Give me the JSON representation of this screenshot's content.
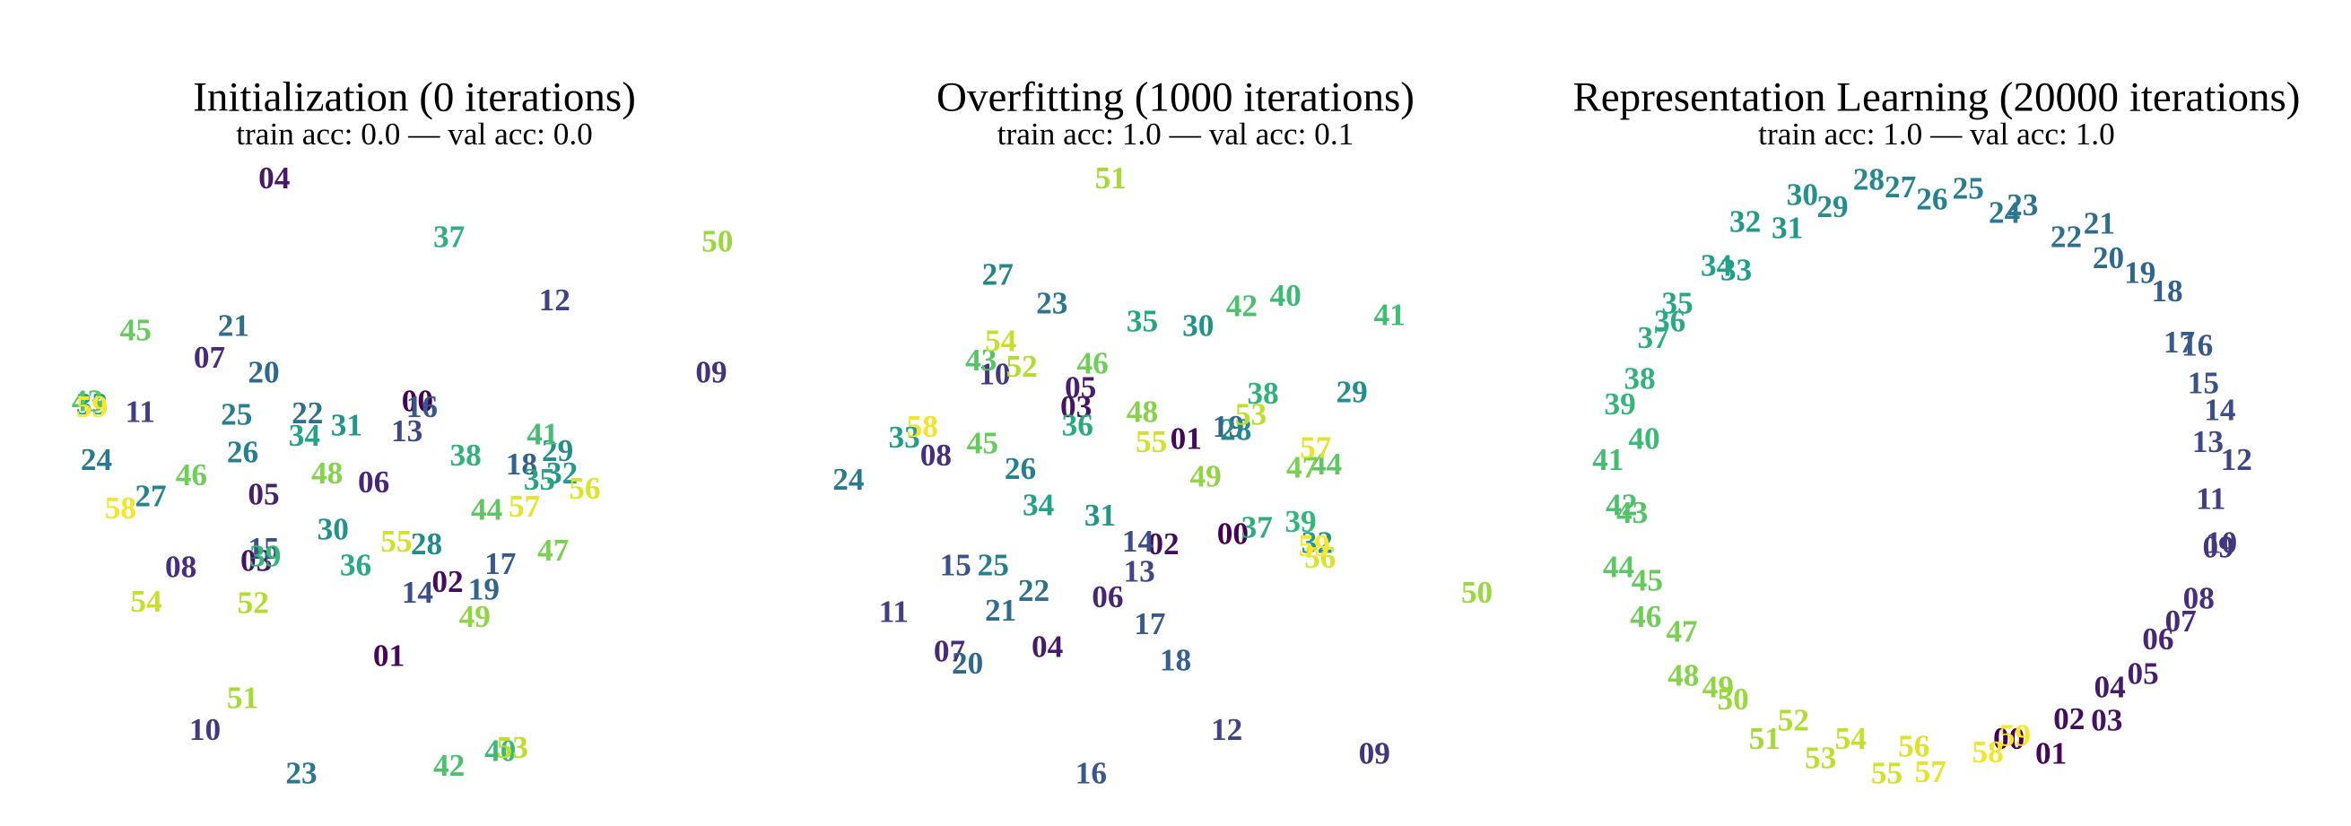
{
  "chart_data": [
    {
      "type": "scatter",
      "title": "Initialization (0 iterations)",
      "subtitle": "train acc: 0.0 — val acc: 0.0",
      "colormap": "viridis",
      "xlim": [
        45,
        505
      ],
      "ylim": [
        540,
        100
      ],
      "labels": [
        "00",
        "01",
        "02",
        "03",
        "04",
        "05",
        "06",
        "07",
        "08",
        "09",
        "10",
        "11",
        "12",
        "13",
        "14",
        "15",
        "16",
        "17",
        "18",
        "19",
        "20",
        "21",
        "22",
        "23",
        "24",
        "25",
        "26",
        "27",
        "28",
        "29",
        "30",
        "31",
        "32",
        "33",
        "34",
        "35",
        "36",
        "37",
        "38",
        "39",
        "40",
        "41",
        "42",
        "43",
        "44",
        "45",
        "46",
        "47",
        "48",
        "49",
        "50",
        "51",
        "52",
        "53",
        "54",
        "55",
        "56",
        "57",
        "58",
        "59"
      ],
      "x": [
        277,
        258,
        297,
        170,
        182,
        175,
        248,
        139,
        120,
        472,
        136,
        93,
        368,
        270,
        277,
        175,
        280,
        332,
        346,
        321,
        175,
        155,
        204,
        200,
        64,
        157,
        161,
        100,
        283,
        370,
        221,
        230,
        373,
        61,
        202,
        358,
        236,
        298,
        309,
        176,
        332,
        360,
        298,
        58,
        323,
        90,
        127,
        367,
        217,
        315,
        476,
        161,
        168,
        340,
        97,
        263,
        388,
        348,
        80,
        61
      ],
      "y": [
        268,
        437,
        388,
        374,
        120,
        330,
        322,
        239,
        378,
        249,
        486,
        275,
        201,
        288,
        395,
        366,
        272,
        376,
        310,
        393,
        249,
        218,
        276,
        515,
        307,
        277,
        302,
        331,
        363,
        301,
        353,
        284,
        316,
        270,
        291,
        320,
        377,
        159,
        304,
        371,
        500,
        290,
        510,
        268,
        340,
        221,
        317,
        367,
        316,
        411,
        162,
        465,
        402,
        498,
        401,
        361,
        326,
        338,
        339,
        272
      ]
    },
    {
      "type": "scatter",
      "title": "Overfitting (1000 iterations)",
      "subtitle": "train acc: 1.0 — val acc: 0.1",
      "colormap": "viridis",
      "xlim": [
        550,
        1010
      ],
      "ylim": [
        540,
        100
      ],
      "labels": [
        "00",
        "01",
        "02",
        "03",
        "04",
        "05",
        "06",
        "07",
        "08",
        "09",
        "10",
        "11",
        "12",
        "13",
        "14",
        "15",
        "16",
        "17",
        "18",
        "19",
        "20",
        "21",
        "22",
        "23",
        "24",
        "25",
        "26",
        "27",
        "28",
        "29",
        "30",
        "31",
        "32",
        "33",
        "34",
        "35",
        "36",
        "37",
        "38",
        "39",
        "40",
        "41",
        "42",
        "43",
        "44",
        "45",
        "46",
        "47",
        "48",
        "49",
        "50",
        "51",
        "52",
        "53",
        "54",
        "55",
        "56",
        "57",
        "58",
        "59"
      ],
      "x": [
        818,
        787,
        772,
        714,
        695,
        717,
        735,
        630,
        621,
        912,
        660,
        593,
        814,
        756,
        755,
        634,
        724,
        763,
        780,
        815,
        642,
        664,
        686,
        698,
        563,
        659,
        677,
        662,
        820,
        897,
        795,
        730,
        874,
        600,
        689,
        758,
        715,
        834,
        838,
        863,
        853,
        922,
        824,
        651,
        880,
        652,
        725,
        864,
        758,
        800,
        980,
        737,
        678,
        830,
        664,
        764,
        876,
        873,
        612,
        872
      ],
      "y": [
        356,
        293,
        363,
        272,
        431,
        259,
        398,
        434,
        304,
        502,
        250,
        408,
        486,
        381,
        361,
        377,
        515,
        416,
        440,
        285,
        442,
        407,
        394,
        203,
        320,
        377,
        313,
        184,
        287,
        262,
        218,
        344,
        362,
        292,
        337,
        215,
        284,
        352,
        263,
        348,
        198,
        211,
        205,
        241,
        310,
        296,
        243,
        312,
        275,
        318,
        395,
        120,
        245,
        277,
        228,
        295,
        372,
        299,
        285,
        364
      ]
    },
    {
      "type": "scatter",
      "title": "Representation Learning (20000 iterations)",
      "subtitle": "train acc: 1.0 — val acc: 1.0",
      "colormap": "viridis",
      "xlim": [
        1055,
        1515
      ],
      "ylim": [
        540,
        100
      ],
      "labels": [
        "00",
        "01",
        "02",
        "03",
        "04",
        "05",
        "06",
        "07",
        "08",
        "09",
        "10",
        "11",
        "12",
        "13",
        "14",
        "15",
        "16",
        "17",
        "18",
        "19",
        "20",
        "21",
        "22",
        "23",
        "24",
        "25",
        "26",
        "27",
        "28",
        "29",
        "30",
        "31",
        "32",
        "33",
        "34",
        "35",
        "36",
        "37",
        "38",
        "39",
        "40",
        "41",
        "42",
        "43",
        "44",
        "45",
        "46",
        "47",
        "48",
        "49",
        "50",
        "51",
        "52",
        "53",
        "54",
        "55",
        "56",
        "57",
        "58",
        "59"
      ],
      "x": [
        1333,
        1361,
        1373,
        1398,
        1400,
        1422,
        1432,
        1447,
        1459,
        1472,
        1474,
        1467,
        1484,
        1465,
        1473,
        1462,
        1458,
        1446,
        1438,
        1420,
        1399,
        1393,
        1371,
        1342,
        1330,
        1306,
        1282,
        1261,
        1240,
        1216,
        1196,
        1186,
        1158,
        1152,
        1139,
        1113,
        1108,
        1097,
        1088,
        1075,
        1091,
        1067,
        1076,
        1083,
        1074,
        1093,
        1092,
        1116,
        1117,
        1140,
        1150,
        1171,
        1190,
        1208,
        1228,
        1252,
        1270,
        1281,
        1319,
        1337
      ],
      "y": [
        492,
        502,
        479,
        480,
        458,
        449,
        426,
        414,
        399,
        365,
        362,
        333,
        307,
        295,
        274,
        256,
        231,
        229,
        195,
        183,
        173,
        150,
        159,
        138,
        143,
        127,
        134,
        126,
        121,
        139,
        131,
        153,
        149,
        181,
        178,
        203,
        215,
        226,
        253,
        270,
        293,
        307,
        337,
        342,
        378,
        387,
        411,
        421,
        450,
        458,
        466,
        492,
        480,
        505,
        492,
        515,
        497,
        514,
        501,
        490
      ]
    }
  ]
}
